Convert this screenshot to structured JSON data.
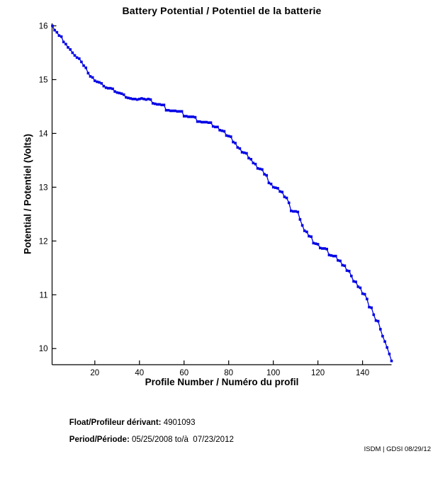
{
  "chart_data": {
    "type": "line",
    "title": "Battery Potential / Potentiel de la batterie",
    "xlabel": "Profile Number / Numéro du profil",
    "ylabel": "Potential / Potentiel (Volts)",
    "xlim": [
      1,
      153
    ],
    "ylim": [
      9.7,
      16
    ],
    "xticks": [
      20,
      40,
      60,
      80,
      100,
      120,
      140
    ],
    "yticks": [
      10,
      11,
      12,
      13,
      14,
      15,
      16
    ],
    "x_start": 1,
    "x_step": 1,
    "grid": false,
    "legend_position": "none",
    "line_color": "#0000E6",
    "marker": "square",
    "values": [
      16.0,
      15.92,
      15.88,
      15.82,
      15.8,
      15.7,
      15.66,
      15.6,
      15.56,
      15.5,
      15.45,
      15.41,
      15.39,
      15.33,
      15.26,
      15.22,
      15.12,
      15.06,
      15.04,
      14.98,
      14.96,
      14.95,
      14.93,
      14.88,
      14.85,
      14.84,
      14.84,
      14.83,
      14.78,
      14.76,
      14.75,
      14.74,
      14.72,
      14.67,
      14.66,
      14.65,
      14.64,
      14.64,
      14.63,
      14.64,
      14.65,
      14.64,
      14.63,
      14.64,
      14.63,
      14.56,
      14.55,
      14.54,
      14.54,
      14.53,
      14.53,
      14.43,
      14.43,
      14.42,
      14.42,
      14.42,
      14.41,
      14.41,
      14.41,
      14.32,
      14.32,
      14.31,
      14.31,
      14.31,
      14.3,
      14.22,
      14.22,
      14.21,
      14.21,
      14.21,
      14.2,
      14.2,
      14.13,
      14.12,
      14.12,
      14.06,
      14.05,
      14.04,
      13.96,
      13.95,
      13.94,
      13.84,
      13.82,
      13.74,
      13.72,
      13.65,
      13.64,
      13.63,
      13.54,
      13.52,
      13.45,
      13.43,
      13.35,
      13.34,
      13.33,
      13.24,
      13.22,
      13.08,
      13.06,
      13.0,
      12.99,
      12.98,
      12.92,
      12.91,
      12.82,
      12.8,
      12.71,
      12.56,
      12.55,
      12.55,
      12.54,
      12.4,
      12.29,
      12.19,
      12.17,
      12.09,
      12.08,
      11.96,
      11.95,
      11.94,
      11.87,
      11.86,
      11.86,
      11.85,
      11.74,
      11.73,
      11.72,
      11.72,
      11.64,
      11.63,
      11.55,
      11.54,
      11.45,
      11.44,
      11.35,
      11.25,
      11.24,
      11.15,
      11.13,
      11.02,
      11.01,
      10.92,
      10.77,
      10.76,
      10.63,
      10.52,
      10.51,
      10.36,
      10.23,
      10.13,
      10.02,
      9.9,
      9.77
    ]
  },
  "footer": {
    "float_label": "Float/Profileur dérivant:",
    "float_value": " 4901093",
    "period_label": "Period/Période:",
    "period_value": " 05/25/2008 to/à  07/23/2012",
    "credit": "ISDM | GDSI 08/29/12"
  }
}
